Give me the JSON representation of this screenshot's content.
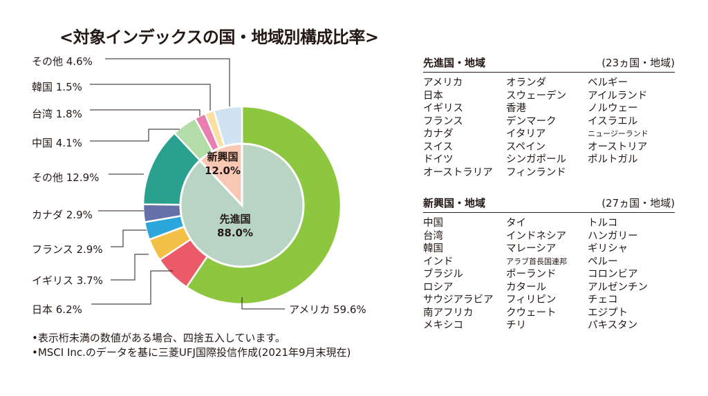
{
  "title": "<対象インデックスの国・地域別構成比率>",
  "chart_data": {
    "type": "pie",
    "outer": [
      {
        "label": "アメリカ 59.6%",
        "value": 59.6,
        "color": "#8dc63f"
      },
      {
        "label": "日本 6.2%",
        "value": 6.2,
        "color": "#ea5a69"
      },
      {
        "label": "イギリス 3.7%",
        "value": 3.7,
        "color": "#f2bf47"
      },
      {
        "label": "フランス 2.9%",
        "value": 2.9,
        "color": "#2aa6dd"
      },
      {
        "label": "カナダ 2.9%",
        "value": 2.9,
        "color": "#6570a8"
      },
      {
        "label": "その他 12.9%",
        "value": 12.9,
        "color": "#2aa18e"
      },
      {
        "label": "中国 4.1%",
        "value": 4.1,
        "color": "#b3dca8"
      },
      {
        "label": "台湾 1.8%",
        "value": 1.8,
        "color": "#ea7eb1"
      },
      {
        "label": "韓国 1.5%",
        "value": 1.5,
        "color": "#fbe0a2"
      },
      {
        "label": "その他 4.6%",
        "value": 4.6,
        "color": "#cfe3f3"
      }
    ],
    "inner": [
      {
        "label": "先進国",
        "pct": "88.0%",
        "value": 88.0,
        "color": "#b8d4c2"
      },
      {
        "label": "新興国",
        "pct": "12.0%",
        "value": 12.0,
        "color": "#f8c8b4"
      }
    ]
  },
  "tables": {
    "developed": {
      "heading": "先進国・地域",
      "count": "(23ヵ国・地域)",
      "col1": [
        "アメリカ",
        "日本",
        "イギリス",
        "フランス",
        "カナダ",
        "スイス",
        "ドイツ",
        "オーストラリア"
      ],
      "col2": [
        "オランダ",
        "スウェーデン",
        "香港",
        "デンマーク",
        "イタリア",
        "スペイン",
        "シンガポール",
        "フィンランド"
      ],
      "col3": [
        "ベルギー",
        "アイルランド",
        "ノルウェー",
        "イスラエル",
        "ニュージーランド",
        "オーストリア",
        "ポルトガル"
      ]
    },
    "emerging": {
      "heading": "新興国・地域",
      "count": "(27ヵ国・地域)",
      "col1": [
        "中国",
        "台湾",
        "韓国",
        "インド",
        "ブラジル",
        "ロシア",
        "サウジアラビア",
        "南アフリカ",
        "メキシコ"
      ],
      "col2": [
        "タイ",
        "インドネシア",
        "マレーシア",
        "アラブ首長国連邦",
        "ポーランド",
        "カタール",
        "フィリピン",
        "クウェート",
        "チリ"
      ],
      "col3": [
        "トルコ",
        "ハンガリー",
        "ギリシャ",
        "ペルー",
        "コロンビア",
        "アルゼンチン",
        "チェコ",
        "エジプト",
        "パキスタン"
      ]
    }
  },
  "notes": [
    "•表示桁未満の数値がある場合、四捨五入しています。",
    "•MSCI Inc.のデータを基に三菱UFJ国際投信作成(2021年9月末現在)"
  ]
}
